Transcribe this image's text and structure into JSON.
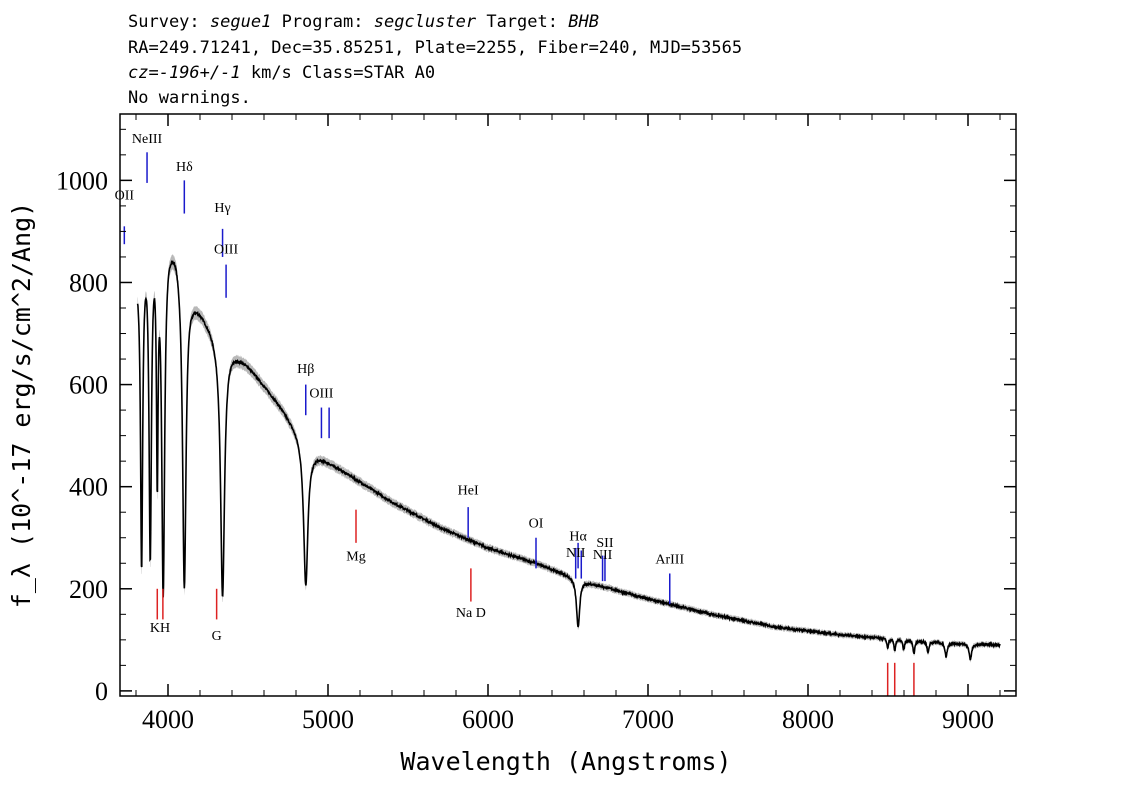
{
  "header": {
    "survey_key": "Survey:",
    "survey": "segue1",
    "program_key": "Program:",
    "program": "segcluster",
    "target_key": "Target:",
    "target": "BHB",
    "coords": "RA=249.71241, Dec=35.85251, Plate=2255, Fiber=240, MJD=53565",
    "cz_key": "cz=",
    "cz_val": "-196+/-1",
    "cz_rest": " km/s Class=STAR A0",
    "warnings": "No warnings."
  },
  "chart_data": {
    "type": "line",
    "xlabel": "Wavelength (Angstroms)",
    "ylabel": "f_λ (10^-17 erg/s/cm^2/Ang)",
    "xlim": [
      3700,
      9300
    ],
    "ylim": [
      -10,
      1130
    ],
    "x_ticks": [
      4000,
      5000,
      6000,
      7000,
      8000,
      9000
    ],
    "y_ticks": [
      0,
      200,
      400,
      600,
      800,
      1000
    ],
    "grid": false,
    "continuum": {
      "x": [
        3810,
        3870,
        3930,
        3990,
        4050,
        4150,
        4300,
        4500,
        4700,
        4900,
        5100,
        5400,
        5700,
        6000,
        6300,
        6600,
        7000,
        7400,
        7800,
        8200,
        8600,
        9000,
        9200
      ],
      "y": [
        830,
        900,
        920,
        905,
        880,
        780,
        700,
        640,
        560,
        470,
        430,
        370,
        320,
        280,
        250,
        215,
        180,
        150,
        125,
        110,
        100,
        92,
        90
      ]
    },
    "absorption_lines": [
      {
        "center": 3835,
        "depth": 600,
        "width": 8
      },
      {
        "center": 3889,
        "depth": 620,
        "width": 9
      },
      {
        "center": 3933,
        "depth": 450,
        "width": 6
      },
      {
        "center": 3970,
        "depth": 700,
        "width": 11
      },
      {
        "center": 4102,
        "depth": 620,
        "width": 13
      },
      {
        "center": 4341,
        "depth": 500,
        "width": 15
      },
      {
        "center": 4861,
        "depth": 280,
        "width": 16
      },
      {
        "center": 6563,
        "depth": 95,
        "width": 12
      },
      {
        "center": 8498,
        "depth": 18,
        "width": 6
      },
      {
        "center": 8542,
        "depth": 22,
        "width": 6
      },
      {
        "center": 8598,
        "depth": 20,
        "width": 6
      },
      {
        "center": 8662,
        "depth": 25,
        "width": 7
      },
      {
        "center": 8750,
        "depth": 22,
        "width": 7
      },
      {
        "center": 8863,
        "depth": 28,
        "width": 8
      },
      {
        "center": 9015,
        "depth": 30,
        "width": 9
      }
    ],
    "emission_markers": [
      {
        "label": "OII",
        "x": 3727,
        "y0": 875,
        "y1": 910,
        "label_y": 963
      },
      {
        "label": "NeIII",
        "x": 3869,
        "y0": 995,
        "y1": 1055,
        "label_y": 1073
      },
      {
        "label": "Hδ",
        "x": 4102,
        "y0": 935,
        "y1": 1000,
        "label_y": 1018
      },
      {
        "label": "Hγ",
        "x": 4341,
        "y0": 850,
        "y1": 905,
        "label_y": 938
      },
      {
        "label": "OIII",
        "x": 4363,
        "y0": 770,
        "y1": 835,
        "label_y": 857
      },
      {
        "label": "Hβ",
        "x": 4861,
        "y0": 540,
        "y1": 600,
        "label_y": 623
      },
      {
        "label": "OIII",
        "x": 4959,
        "y0": 495,
        "y1": 555,
        "label_y": 575
      },
      {
        "label": "",
        "x": 5007,
        "y0": 495,
        "y1": 555,
        "label_y": 0
      },
      {
        "label": "HeI",
        "x": 5876,
        "y0": 300,
        "y1": 360,
        "label_y": 385
      },
      {
        "label": "OI",
        "x": 6300,
        "y0": 240,
        "y1": 300,
        "label_y": 320
      },
      {
        "label": "NII",
        "x": 6548,
        "y0": 220,
        "y1": 280,
        "label_y": 262
      },
      {
        "label": "Hα",
        "x": 6563,
        "y0": 240,
        "y1": 290,
        "label_y": 295
      },
      {
        "label": "",
        "x": 6583,
        "y0": 220,
        "y1": 275,
        "label_y": 0
      },
      {
        "label": "NII",
        "x": 6716,
        "y0": 215,
        "y1": 265,
        "label_y": 258
      },
      {
        "label": "SII",
        "x": 6731,
        "y0": 215,
        "y1": 265,
        "label_y": 282
      },
      {
        "label": "ArIII",
        "x": 7136,
        "y0": 170,
        "y1": 230,
        "label_y": 250
      }
    ],
    "absorption_markers": [
      {
        "label": "KH",
        "x": 3950,
        "xs": [
          3933,
          3968
        ],
        "y0": 140,
        "y1": 200,
        "label_y": 115
      },
      {
        "label": "G",
        "x": 4304,
        "xs": [
          4304
        ],
        "y0": 140,
        "y1": 200,
        "label_y": 100
      },
      {
        "label": "Mg",
        "x": 5175,
        "xs": [
          5175
        ],
        "y0": 290,
        "y1": 355,
        "label_y": 255
      },
      {
        "label": "Na D",
        "x": 5893,
        "xs": [
          5893
        ],
        "y0": 175,
        "y1": 240,
        "label_y": 145
      },
      {
        "label": "",
        "x": 8542,
        "xs": [
          8498,
          8542,
          8662
        ],
        "y0": -12,
        "y1": 55,
        "label_y": 0
      }
    ],
    "colors": {
      "spectrum": "#000000",
      "error_band": "#b8b8b8",
      "emission": "#1a1acc",
      "absorption": "#dd2222"
    }
  }
}
